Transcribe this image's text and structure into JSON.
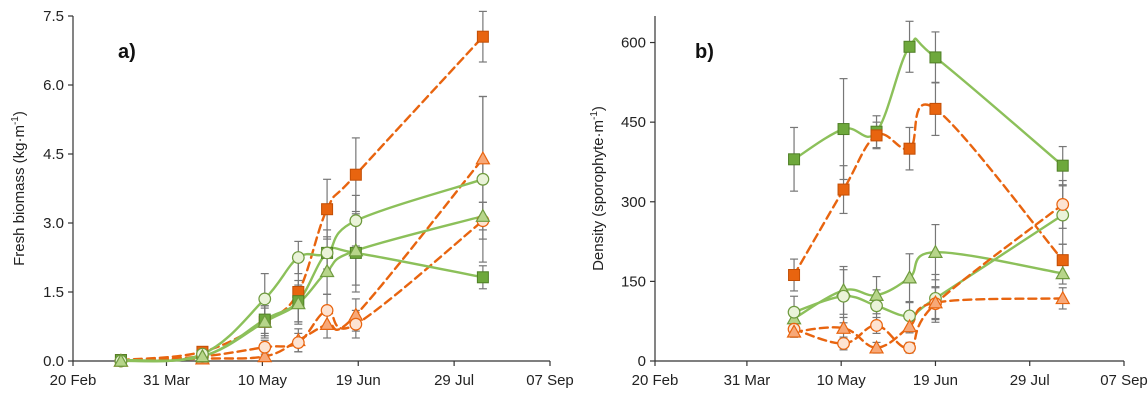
{
  "colors": {
    "orange": "#E8640F",
    "orange_light": "#F7A878",
    "orange_pale": "#FDE3D2",
    "green": "#6EA83C",
    "green_light": "#B7D58A",
    "green_pale": "#EAF3D9",
    "green_line": "#8CC05A",
    "error_bar": "#777777"
  },
  "chart_data": [
    {
      "type": "line",
      "panel_label": "a)",
      "ylabel": "Fresh biomass (kg·m",
      "ylabel_sup": "-1",
      "ylabel_close": ")",
      "x_axis": {
        "type": "date",
        "min": "2021-02-20",
        "max": "2021-09-07",
        "ticks": [
          "2021-02-20",
          "2021-03-31",
          "2021-05-10",
          "2021-06-19",
          "2021-07-29",
          "2021-09-07"
        ],
        "tick_labels": [
          "20 Feb",
          "31 Mar",
          "10 May",
          "19 Jun",
          "29 Jul",
          "07 Sep"
        ]
      },
      "y_axis": {
        "min": 0,
        "max": 7.5,
        "ticks": [
          0,
          1.5,
          3,
          4.5,
          6,
          7.5
        ],
        "tick_labels": [
          "0.0",
          "1.5",
          "3.0",
          "4.5",
          "6.0",
          "7.5"
        ]
      },
      "series": [
        {
          "group": "orange",
          "marker": "square",
          "line": "dashed",
          "points": [
            {
              "x": "2021-03-12",
              "y": 0.02,
              "err": 0.02
            },
            {
              "x": "2021-04-15",
              "y": 0.2,
              "err": 0.05
            },
            {
              "x": "2021-05-11",
              "y": 0.85,
              "err": 0.35
            },
            {
              "x": "2021-05-25",
              "y": 1.5,
              "err": 0.7
            },
            {
              "x": "2021-06-06",
              "y": 3.3,
              "err": 0.65
            },
            {
              "x": "2021-06-18",
              "y": 4.05,
              "err": 0.8
            },
            {
              "x": "2021-08-10",
              "y": 7.05,
              "err": 0.55
            }
          ]
        },
        {
          "group": "orange",
          "marker": "triangle",
          "line": "dashed",
          "points": [
            {
              "x": "2021-03-12",
              "y": 0.0,
              "err": 0.0
            },
            {
              "x": "2021-04-15",
              "y": 0.05,
              "err": 0.03
            },
            {
              "x": "2021-05-11",
              "y": 0.1,
              "err": 0.1
            },
            {
              "x": "2021-05-25",
              "y": 0.45,
              "err": 0.25
            },
            {
              "x": "2021-06-06",
              "y": 0.8,
              "err": 0.3
            },
            {
              "x": "2021-06-18",
              "y": 1.0,
              "err": 0.35
            },
            {
              "x": "2021-08-10",
              "y": 4.4,
              "err": 1.35
            }
          ]
        },
        {
          "group": "orange",
          "marker": "circle",
          "line": "dashed",
          "points": [
            {
              "x": "2021-03-12",
              "y": 0.0,
              "err": 0.0
            },
            {
              "x": "2021-04-15",
              "y": 0.1,
              "err": 0.05
            },
            {
              "x": "2021-05-11",
              "y": 0.3,
              "err": 0.15
            },
            {
              "x": "2021-05-25",
              "y": 0.4,
              "err": 0.2
            },
            {
              "x": "2021-06-06",
              "y": 1.1,
              "err": 0.35
            },
            {
              "x": "2021-06-18",
              "y": 0.8,
              "err": 0.3
            },
            {
              "x": "2021-08-10",
              "y": 3.05,
              "err": 0.4
            }
          ]
        },
        {
          "group": "green",
          "marker": "square",
          "line": "solid",
          "points": [
            {
              "x": "2021-03-12",
              "y": 0.02,
              "err": 0.02
            },
            {
              "x": "2021-04-15",
              "y": 0.1,
              "err": 0.05
            },
            {
              "x": "2021-05-11",
              "y": 0.9,
              "err": 0.3
            },
            {
              "x": "2021-05-25",
              "y": 1.3,
              "err": 0.45
            },
            {
              "x": "2021-06-06",
              "y": 2.35,
              "err": 0.5
            },
            {
              "x": "2021-06-18",
              "y": 2.35,
              "err": 0.85
            },
            {
              "x": "2021-08-10",
              "y": 1.82,
              "err": 0.25
            }
          ]
        },
        {
          "group": "green",
          "marker": "circle",
          "line": "solid",
          "points": [
            {
              "x": "2021-03-12",
              "y": 0.0,
              "err": 0.0
            },
            {
              "x": "2021-04-15",
              "y": 0.15,
              "err": 0.05
            },
            {
              "x": "2021-05-11",
              "y": 1.35,
              "err": 0.55
            },
            {
              "x": "2021-05-25",
              "y": 2.25,
              "err": 0.35
            },
            {
              "x": "2021-06-06",
              "y": 2.35,
              "err": 0.35
            },
            {
              "x": "2021-06-18",
              "y": 3.05,
              "err": 0.55
            },
            {
              "x": "2021-08-10",
              "y": 3.95,
              "err": 1.8
            }
          ]
        },
        {
          "group": "green",
          "marker": "triangle",
          "line": "solid",
          "points": [
            {
              "x": "2021-03-12",
              "y": 0.0,
              "err": 0.0
            },
            {
              "x": "2021-04-15",
              "y": 0.1,
              "err": 0.05
            },
            {
              "x": "2021-05-11",
              "y": 0.85,
              "err": 0.3
            },
            {
              "x": "2021-05-25",
              "y": 1.25,
              "err": 0.4
            },
            {
              "x": "2021-06-06",
              "y": 1.95,
              "err": 0.5
            },
            {
              "x": "2021-06-18",
              "y": 2.4,
              "err": 0.75
            },
            {
              "x": "2021-08-10",
              "y": 3.15,
              "err": 0.3
            }
          ]
        }
      ]
    },
    {
      "type": "line",
      "panel_label": "b)",
      "ylabel": "Density (sporophyte·m",
      "ylabel_sup": "-1",
      "ylabel_close": ")",
      "x_axis": {
        "type": "date",
        "min": "2021-02-20",
        "max": "2021-09-07",
        "ticks": [
          "2021-02-20",
          "2021-03-31",
          "2021-05-10",
          "2021-06-19",
          "2021-07-29",
          "2021-09-07"
        ],
        "tick_labels": [
          "20 Feb",
          "31 Mar",
          "10 May",
          "19 Jun",
          "29 Jul",
          "07 Sep"
        ]
      },
      "y_axis": {
        "min": 0,
        "max": 650,
        "ticks": [
          0,
          150,
          300,
          450,
          600
        ],
        "tick_labels": [
          "0",
          "150",
          "300",
          "450",
          "600"
        ]
      },
      "series": [
        {
          "group": "green",
          "marker": "square",
          "line": "solid",
          "points": [
            {
              "x": "2021-04-20",
              "y": 380,
              "err": 60
            },
            {
              "x": "2021-05-11",
              "y": 437,
              "err": 95
            },
            {
              "x": "2021-05-25",
              "y": 432,
              "err": 30
            },
            {
              "x": "2021-06-08",
              "y": 592,
              "err": 48
            },
            {
              "x": "2021-06-19",
              "y": 572,
              "err": 48
            },
            {
              "x": "2021-08-12",
              "y": 368,
              "err": 36
            }
          ]
        },
        {
          "group": "orange",
          "marker": "square",
          "line": "dashed",
          "points": [
            {
              "x": "2021-04-20",
              "y": 162,
              "err": 30
            },
            {
              "x": "2021-05-11",
              "y": 323,
              "err": 45
            },
            {
              "x": "2021-05-25",
              "y": 425,
              "err": 25
            },
            {
              "x": "2021-06-08",
              "y": 400,
              "err": 40
            },
            {
              "x": "2021-06-19",
              "y": 475,
              "err": 50
            },
            {
              "x": "2021-08-12",
              "y": 190,
              "err": 30
            }
          ]
        },
        {
          "group": "green",
          "marker": "triangle",
          "line": "solid",
          "points": [
            {
              "x": "2021-04-20",
              "y": 80,
              "err": 20
            },
            {
              "x": "2021-05-11",
              "y": 133,
              "err": 45
            },
            {
              "x": "2021-05-25",
              "y": 124,
              "err": 35
            },
            {
              "x": "2021-06-08",
              "y": 157,
              "err": 45
            },
            {
              "x": "2021-06-19",
              "y": 205,
              "err": 52
            },
            {
              "x": "2021-08-12",
              "y": 165,
              "err": 20
            }
          ]
        },
        {
          "group": "green",
          "marker": "circle",
          "line": "solid",
          "points": [
            {
              "x": "2021-04-20",
              "y": 92,
              "err": 30
            },
            {
              "x": "2021-05-11",
              "y": 122,
              "err": 50
            },
            {
              "x": "2021-05-25",
              "y": 104,
              "err": 30
            },
            {
              "x": "2021-06-08",
              "y": 85,
              "err": 25
            },
            {
              "x": "2021-06-19",
              "y": 118,
              "err": 45
            },
            {
              "x": "2021-08-12",
              "y": 275,
              "err": 55
            }
          ]
        },
        {
          "group": "orange",
          "marker": "circle",
          "line": "dashed",
          "points": [
            {
              "x": "2021-04-20",
              "y": 60,
              "err": 15
            },
            {
              "x": "2021-05-11",
              "y": 33,
              "err": 12
            },
            {
              "x": "2021-05-25",
              "y": 67,
              "err": 15
            },
            {
              "x": "2021-06-08",
              "y": 25,
              "err": 10
            },
            {
              "x": "2021-06-19",
              "y": 108,
              "err": 30
            },
            {
              "x": "2021-08-12",
              "y": 295,
              "err": 45
            }
          ]
        },
        {
          "group": "orange",
          "marker": "triangle",
          "line": "dashed",
          "points": [
            {
              "x": "2021-04-20",
              "y": 55,
              "err": 10
            },
            {
              "x": "2021-05-11",
              "y": 62,
              "err": 20
            },
            {
              "x": "2021-05-25",
              "y": 25,
              "err": 10
            },
            {
              "x": "2021-06-08",
              "y": 65,
              "err": 12
            },
            {
              "x": "2021-06-19",
              "y": 110,
              "err": 30
            },
            {
              "x": "2021-08-12",
              "y": 118,
              "err": 20
            }
          ]
        }
      ]
    }
  ]
}
